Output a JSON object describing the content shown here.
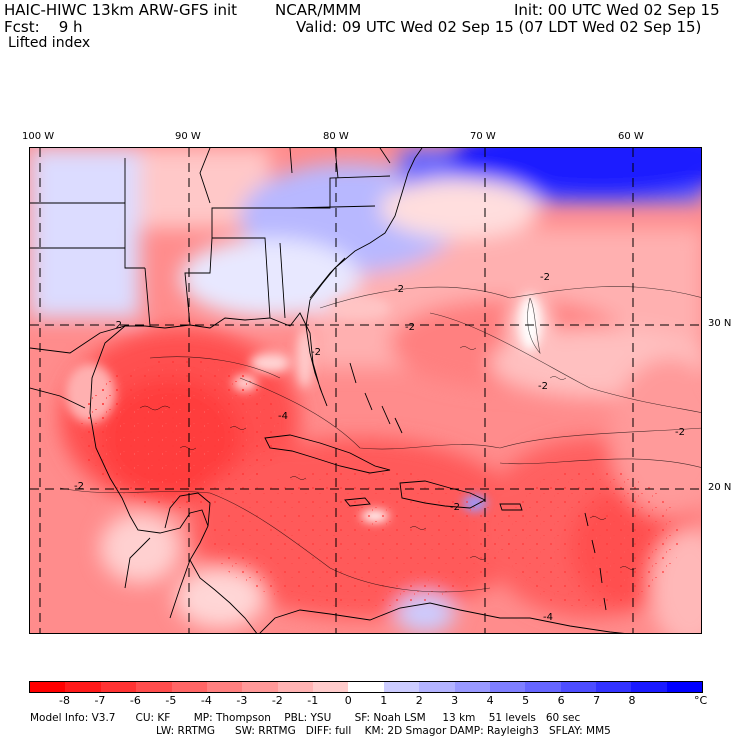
{
  "header": {
    "model": "HAIC-HIWC 13km ARW-GFS init",
    "center": "NCAR/MMM",
    "init": "Init: 00 UTC Wed 02 Sep 15",
    "fcst": "Fcst:    9 h",
    "valid": "Valid: 09 UTC Wed 02 Sep 15 (07 LDT Wed 02 Sep 15)",
    "field": "Lifted index"
  },
  "axes": {
    "lon_labels": [
      "100 W",
      "90 W",
      "80 W",
      "70 W",
      "60 W"
    ],
    "lat_labels": [
      "30 N",
      "20 N"
    ]
  },
  "contour_labels": [
    "-2",
    "-2",
    "-2",
    "-2",
    "-2",
    "-2",
    "-2",
    "-2",
    "-4",
    "-4",
    "-2"
  ],
  "colorbar": {
    "labels": [
      "-8",
      "-7",
      "-6",
      "-5",
      "-4",
      "-3",
      "-2",
      "-1",
      "0",
      "1",
      "2",
      "3",
      "4",
      "5",
      "6",
      "7",
      "8"
    ],
    "unit": "°C",
    "colors": [
      "#ff0000",
      "#ff1a1a",
      "#ff3333",
      "#ff4d4d",
      "#ff6666",
      "#ff8080",
      "#ff9999",
      "#ffb3b3",
      "#ffcccc",
      "#ffffff",
      "#ccccff",
      "#b3b3ff",
      "#9999ff",
      "#7f7fff",
      "#6666ff",
      "#4d4dff",
      "#3333ff",
      "#1a1aff",
      "#0000ff"
    ]
  },
  "footer": {
    "line1": "Model Info: V3.7      CU: KF       MP: Thompson    PBL: YSU       SF: Noah LSM     13 km    51 levels   60 sec",
    "line2": "LW: RRTMG      SW: RRTMG   DIFF: full    KM: 2D Smagor DAMP: Rayleigh3   SFLAY: MM5"
  }
}
